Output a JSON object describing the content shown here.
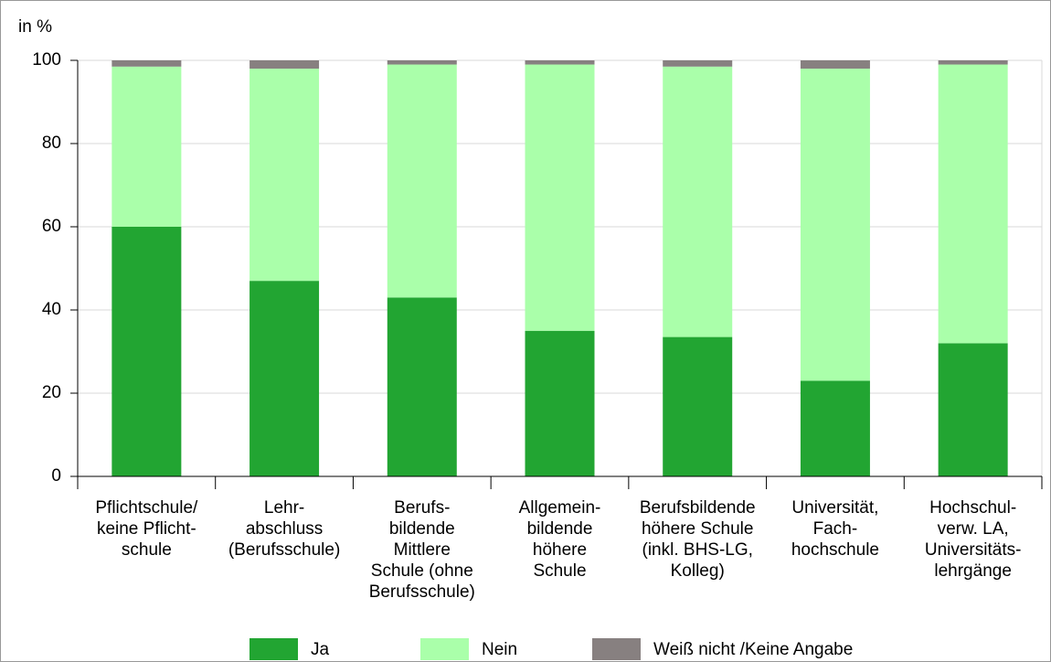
{
  "chart_data": {
    "type": "stacked_bar",
    "y_axis_label": "in %",
    "categories": [
      [
        "Pflichtschule/",
        "keine Pflicht-",
        "schule"
      ],
      [
        "Lehr-",
        "abschluss",
        "(Berufsschule)"
      ],
      [
        "Berufs-",
        "bildende",
        "Mittlere",
        "Schule (ohne",
        "Berufsschule)"
      ],
      [
        "Allgemein-",
        "bildende",
        "höhere",
        "Schule"
      ],
      [
        "Berufsbildende",
        "höhere Schule",
        "(inkl. BHS-LG,",
        "Kolleg)"
      ],
      [
        "Universität,",
        "Fach-",
        "hochschule"
      ],
      [
        "Hochschul-",
        "verw. LA,",
        "Universitäts-",
        "lehrgänge"
      ]
    ],
    "series": [
      {
        "name": "Ja",
        "color": "#22a532",
        "values": [
          60,
          47,
          43,
          35,
          33.5,
          23,
          32
        ]
      },
      {
        "name": "Nein",
        "color": "#aaffaa",
        "values": [
          38.5,
          51,
          56,
          64,
          65,
          75,
          67
        ]
      },
      {
        "name": "Weiß nicht /Keine Angabe",
        "color": "#878080",
        "values": [
          1.5,
          2,
          1,
          1,
          1.5,
          2,
          1
        ]
      }
    ],
    "ylim": [
      0,
      100
    ],
    "yticks": [
      0,
      20,
      40,
      60,
      80,
      100
    ],
    "grid": true,
    "legend": "bottom"
  }
}
